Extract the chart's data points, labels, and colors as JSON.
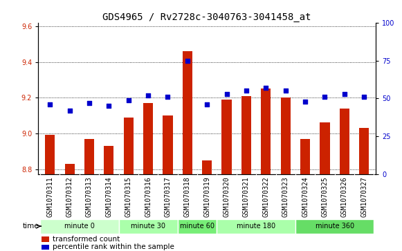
{
  "title": "GDS4965 / Rv2728c-3040763-3041458_at",
  "samples": [
    "GSM1070311",
    "GSM1070312",
    "GSM1070313",
    "GSM1070314",
    "GSM1070315",
    "GSM1070316",
    "GSM1070317",
    "GSM1070318",
    "GSM1070319",
    "GSM1070320",
    "GSM1070321",
    "GSM1070322",
    "GSM1070323",
    "GSM1070324",
    "GSM1070325",
    "GSM1070326",
    "GSM1070327"
  ],
  "bar_values": [
    8.99,
    8.83,
    8.97,
    8.93,
    9.09,
    9.17,
    9.1,
    9.46,
    8.85,
    9.19,
    9.21,
    9.25,
    9.2,
    8.97,
    9.06,
    9.14,
    9.03
  ],
  "scatter_values": [
    46,
    42,
    47,
    45,
    49,
    52,
    51,
    75,
    46,
    53,
    55,
    57,
    55,
    48,
    51,
    53,
    51
  ],
  "ylim_left": [
    8.77,
    9.62
  ],
  "ylim_right": [
    0,
    100
  ],
  "yticks_left": [
    8.8,
    9.0,
    9.2,
    9.4,
    9.6
  ],
  "yticks_right": [
    0,
    25,
    50,
    75,
    100
  ],
  "bar_color": "#cc2200",
  "scatter_color": "#0000cc",
  "groups": [
    {
      "label": "minute 0",
      "start": 0,
      "end": 4,
      "color": "#ccffcc"
    },
    {
      "label": "minute 30",
      "start": 4,
      "end": 7,
      "color": "#aaffaa"
    },
    {
      "label": "minute 60",
      "start": 7,
      "end": 9,
      "color": "#77ee77"
    },
    {
      "label": "minute 180",
      "start": 9,
      "end": 13,
      "color": "#aaffaa"
    },
    {
      "label": "minute 360",
      "start": 13,
      "end": 17,
      "color": "#66dd66"
    }
  ],
  "legend_bar_label": "transformed count",
  "legend_scatter_label": "percentile rank within the sample",
  "plot_bg_color": "#ffffff",
  "sample_label_bg": "#cccccc",
  "grid_color": "black",
  "title_fontsize": 10,
  "tick_fontsize": 7,
  "bar_bottom": 8.77
}
